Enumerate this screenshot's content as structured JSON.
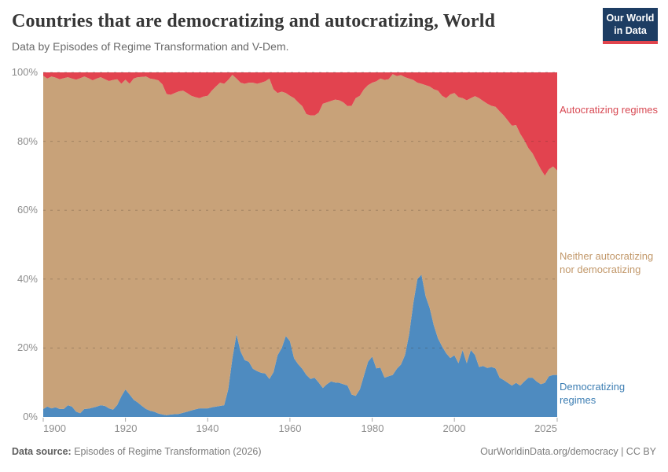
{
  "header": {
    "title": "Countries that are democratizing and autocratizing, World",
    "subtitle": "Data by Episodes of Regime Transformation and V-Dem.",
    "logo_line1": "Our World",
    "logo_line2": "in Data",
    "logo_bg": "#1d3d63",
    "logo_accent": "#e1444d"
  },
  "axes": {
    "y_labels": [
      "100%",
      "80%",
      "60%",
      "40%",
      "20%",
      "0%"
    ],
    "x_labels": [
      "1900",
      "1920",
      "1940",
      "1960",
      "1980",
      "2000",
      "2025"
    ]
  },
  "legend": {
    "autocratizing": {
      "label": "Autocratizing regimes",
      "color": "#d84a54"
    },
    "neither": {
      "label": "Neither autocratizing nor democratizing",
      "color": "#c2986a"
    },
    "democratizing": {
      "label": "Democratizing regimes",
      "color": "#3d7eb3"
    }
  },
  "footer": {
    "source_label": "Data source:",
    "source_text": " Episodes of Regime Transformation (2026)",
    "link_text": "OurWorldinData.org/democracy | CC BY"
  },
  "chart_data": {
    "type": "area",
    "stacked": true,
    "title": "Countries that are democratizing and autocratizing, World",
    "unit": "%",
    "ylim": [
      0,
      100
    ],
    "gridline_percents": [
      20,
      40,
      60,
      80,
      100
    ],
    "x_tick_years": [
      1900,
      1920,
      1940,
      1960,
      1980,
      2000,
      2025
    ],
    "x": [
      1900,
      1901,
      1902,
      1903,
      1904,
      1905,
      1906,
      1907,
      1908,
      1909,
      1910,
      1911,
      1912,
      1913,
      1914,
      1915,
      1916,
      1917,
      1918,
      1919,
      1920,
      1921,
      1922,
      1923,
      1924,
      1925,
      1926,
      1927,
      1928,
      1929,
      1930,
      1931,
      1932,
      1933,
      1934,
      1935,
      1936,
      1937,
      1938,
      1939,
      1940,
      1941,
      1942,
      1943,
      1944,
      1945,
      1946,
      1947,
      1948,
      1949,
      1950,
      1951,
      1952,
      1953,
      1954,
      1955,
      1956,
      1957,
      1958,
      1959,
      1960,
      1961,
      1962,
      1963,
      1964,
      1965,
      1966,
      1967,
      1968,
      1969,
      1970,
      1971,
      1972,
      1973,
      1974,
      1975,
      1976,
      1977,
      1978,
      1979,
      1980,
      1981,
      1982,
      1983,
      1984,
      1985,
      1986,
      1987,
      1988,
      1989,
      1990,
      1991,
      1992,
      1993,
      1994,
      1995,
      1996,
      1997,
      1998,
      1999,
      2000,
      2001,
      2002,
      2003,
      2004,
      2005,
      2006,
      2007,
      2008,
      2009,
      2010,
      2011,
      2012,
      2013,
      2014,
      2015,
      2016,
      2017,
      2018,
      2019,
      2020,
      2021,
      2022,
      2023,
      2024,
      2025
    ],
    "series": [
      {
        "key": "democratizing",
        "name": "Democratizing regimes",
        "color": "#4e8bc0",
        "values": [
          2.3,
          3,
          2.5,
          2.8,
          2.3,
          2.3,
          3.4,
          3,
          1.5,
          1.1,
          2.3,
          2.4,
          2.7,
          3,
          3.4,
          3.2,
          2.5,
          2.1,
          3.5,
          6,
          8,
          6.5,
          5,
          4.2,
          3.2,
          2.3,
          1.8,
          1.5,
          1,
          0.7,
          0.5,
          0.7,
          0.8,
          0.9,
          1.2,
          1.5,
          1.9,
          2.2,
          2.5,
          2.5,
          2.5,
          2.8,
          3,
          3.2,
          3.4,
          8,
          17,
          24,
          19,
          16.5,
          16,
          14,
          13.3,
          12.8,
          12.6,
          11,
          13,
          17.9,
          20,
          23.5,
          22,
          17,
          15.3,
          14,
          12.2,
          11,
          11.4,
          10,
          8.4,
          9.5,
          10.3,
          10,
          9.9,
          9.5,
          9.1,
          6.5,
          6.1,
          8,
          12,
          16,
          17.5,
          14.1,
          14.3,
          11.4,
          11.8,
          12.2,
          14,
          15.2,
          18,
          24,
          33,
          40,
          41.3,
          35,
          31.6,
          26.6,
          22.8,
          20.5,
          18.5,
          17.1,
          17.9,
          15.6,
          19.4,
          15.6,
          19.4,
          18,
          14.5,
          14.8,
          14.2,
          14.5,
          14.1,
          11.4,
          10.7,
          9.9,
          9.1,
          9.9,
          9.1,
          10.3,
          11.4,
          11.4,
          10.3,
          9.5,
          9.9,
          11.8,
          12.2,
          12.2
        ]
      },
      {
        "key": "neither",
        "name": "Neither autocratizing nor democratizing",
        "color": "#c8a279",
        "values": [
          96.7,
          95.2,
          96.3,
          95.7,
          95.7,
          96,
          95.2,
          95.2,
          96.4,
          97.2,
          96.5,
          95.9,
          95,
          95.2,
          95.2,
          94.8,
          95,
          95.7,
          94.5,
          90.7,
          89.9,
          90.2,
          93.2,
          94.4,
          95.5,
          96.5,
          96.4,
          96.5,
          96.7,
          95.8,
          93.2,
          92.8,
          93.2,
          93.6,
          93.5,
          92.5,
          91.3,
          90.6,
          90,
          90.5,
          90.7,
          91.9,
          92.9,
          93.8,
          93.3,
          89.8,
          82.3,
          74.2,
          78,
          80.2,
          81,
          83,
          83.4,
          84.2,
          84.8,
          87.2,
          82.1,
          76.1,
          74.4,
          70.5,
          71.2,
          75.5,
          76,
          76.2,
          75.7,
          76.5,
          76.1,
          78.3,
          82.5,
          81.8,
          81.4,
          82.1,
          82,
          81.8,
          81.1,
          83.8,
          86.4,
          85.2,
          83.1,
          80.3,
          79.5,
          83.3,
          83.9,
          86.4,
          86.2,
          87.3,
          84.9,
          84,
          80.6,
          74.2,
          64.8,
          57,
          55.4,
          61.3,
          64.3,
          68.5,
          71.9,
          72.7,
          74,
          76.5,
          76.1,
          77.2,
          73.1,
          76.3,
          73.1,
          75.1,
          78,
          76.9,
          76.7,
          75.8,
          75.9,
          77.3,
          76.8,
          76.1,
          75.4,
          74.8,
          73.1,
          70,
          66.6,
          65.1,
          63.9,
          62.4,
          60.1,
          60.1,
          60.5,
          59.3
        ]
      },
      {
        "key": "autocratizing",
        "name": "Autocratizing regimes",
        "color": "#e2434f",
        "values": [
          1,
          1.8,
          1.2,
          1.5,
          2,
          1.7,
          1.4,
          1.8,
          2.1,
          1.7,
          1.2,
          1.7,
          2.3,
          1.8,
          1.4,
          2,
          2.5,
          2.2,
          2,
          3.3,
          2.1,
          3.3,
          1.8,
          1.4,
          1.3,
          1.2,
          1.8,
          2,
          2.3,
          3.5,
          6.3,
          6.5,
          6,
          5.5,
          5.3,
          6,
          6.8,
          7.2,
          7.5,
          7,
          6.8,
          5.3,
          4.1,
          3,
          3.3,
          2.2,
          0.7,
          1.8,
          3,
          3.3,
          3,
          3,
          3.3,
          3,
          2.6,
          1.8,
          4.9,
          6,
          5.6,
          6,
          6.8,
          7.5,
          8.7,
          9.8,
          12.1,
          12.5,
          12.5,
          11.7,
          9.1,
          8.7,
          8.3,
          7.9,
          8.1,
          8.7,
          9.8,
          9.7,
          7.5,
          6.8,
          4.9,
          3.7,
          3,
          2.6,
          1.8,
          2.2,
          2,
          0.5,
          1.1,
          0.8,
          1.4,
          1.8,
          2.2,
          3,
          3.3,
          3.7,
          4.1,
          4.9,
          5.3,
          6.8,
          7.5,
          6.4,
          6,
          7.2,
          7.5,
          8.1,
          7.5,
          6.9,
          7.5,
          8.3,
          9.1,
          9.7,
          10,
          11.3,
          12.5,
          14,
          15.5,
          15.3,
          17.8,
          19.7,
          22,
          23.5,
          25.8,
          28.1,
          30,
          28.1,
          27.3,
          28.5
        ]
      }
    ],
    "legend_position": "right",
    "grid": "dashed-horizontal"
  }
}
